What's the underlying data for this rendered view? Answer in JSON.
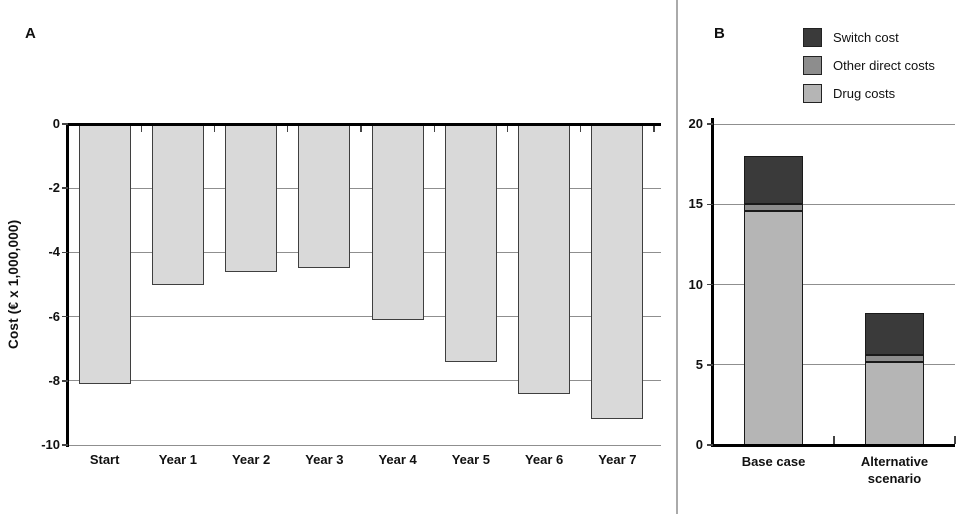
{
  "figure": {
    "panel_a_label": "A",
    "panel_b_label": "B"
  },
  "colors": {
    "panel_a_bar_fill": "#d9d9d9",
    "panel_a_bar_border": "#3f3f3f",
    "gridline": "#8f8f8f",
    "axis": "#000000",
    "divider": "#aaaaaa",
    "switch_cost": "#3a3a3a",
    "other_direct_costs": "#8d8d8d",
    "drug_costs": "#b5b5b5"
  },
  "chart_data": [
    {
      "type": "bar",
      "panel": "A",
      "title": "",
      "ylabel": "Cost (€ x 1,000,000)",
      "xlabel": "",
      "categories": [
        "Start",
        "Year 1",
        "Year 2",
        "Year 3",
        "Year 4",
        "Year 5",
        "Year 6",
        "Year 7"
      ],
      "values": [
        -8.1,
        -5.0,
        -4.6,
        -4.5,
        -6.1,
        -7.4,
        -8.4,
        -9.2
      ],
      "ylim": [
        -10,
        0
      ],
      "yticks": [
        0,
        -2,
        -4,
        -6,
        -8,
        -10
      ],
      "grid": true,
      "bar_color": "#d9d9d9",
      "bar_border_color": "#3f3f3f"
    },
    {
      "type": "bar",
      "subtype": "stacked",
      "panel": "B",
      "title": "",
      "ylabel": "",
      "xlabel": "",
      "categories": [
        "Base case",
        "Alternative scenario"
      ],
      "series": [
        {
          "name": "Drug costs",
          "color": "#b5b5b5",
          "values": [
            14.6,
            5.2
          ]
        },
        {
          "name": "Other direct costs",
          "color": "#8d8d8d",
          "values": [
            0.4,
            0.4
          ]
        },
        {
          "name": "Switch cost",
          "color": "#3a3a3a",
          "values": [
            3.0,
            2.6
          ]
        }
      ],
      "totals": [
        18.0,
        8.2
      ],
      "ylim": [
        0,
        20
      ],
      "yticks": [
        0,
        5,
        10,
        15,
        20
      ],
      "grid": true,
      "legend": {
        "position": "top-right",
        "entries": [
          "Switch cost",
          "Other direct costs",
          "Drug costs"
        ]
      }
    }
  ]
}
